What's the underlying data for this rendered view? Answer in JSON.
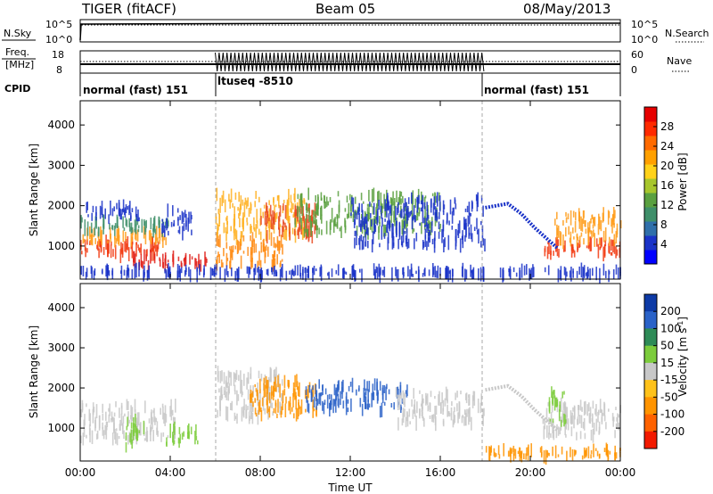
{
  "header": {
    "station": "TIGER (fitACF)",
    "beam": "Beam 05",
    "date": "08/May/2013"
  },
  "chart_data": [
    {
      "type": "line",
      "panel": "noise",
      "left_label": "N.Sky",
      "right_label": "N.Search",
      "left_ticks": [
        "10^5",
        "10^0"
      ],
      "right_ticks": [
        "10^5",
        "10^0"
      ]
    },
    {
      "type": "line",
      "panel": "frequency",
      "left_label_line1": "Freq.",
      "left_label_line2": "[MHz]",
      "right_label": "Nave",
      "left_ticks": [
        18,
        8
      ],
      "right_ticks": [
        60,
        0
      ],
      "nave_burst": {
        "start_hour": 6.0,
        "end_hour": 18.0
      }
    },
    {
      "type": "table",
      "panel": "cpid",
      "label": "CPID",
      "segments": [
        {
          "start_hour": 0,
          "end_hour": 6.0,
          "text": "normal (fast) 151"
        },
        {
          "start_hour": 6.0,
          "end_hour": 18.0,
          "text": "ltuseq -8510"
        },
        {
          "start_hour": 18.0,
          "end_hour": 24.0,
          "text": "normal (fast) 151"
        }
      ]
    },
    {
      "type": "heatmap",
      "panel": "power",
      "ylabel": "Slant Range [km]",
      "ylim": [
        180,
        4600
      ],
      "yticks": [
        1000,
        2000,
        3000,
        4000
      ],
      "xlim": [
        0,
        24
      ],
      "colorbar": {
        "label": "Power [dB]",
        "ticks": [
          4,
          8,
          12,
          16,
          20,
          24,
          28
        ],
        "range": [
          0,
          32
        ],
        "colors": [
          "#0000ff",
          "#1a33c8",
          "#2f6faa",
          "#3f8f6a",
          "#5aa040",
          "#a7c62c",
          "#ffd21a",
          "#ffa000",
          "#ff6a00",
          "#ff2a00",
          "#e60000"
        ]
      },
      "echo_regions": [
        {
          "x0": 0.0,
          "x1": 3.6,
          "y0": 750,
          "y1": 1100,
          "color": "#f23a10"
        },
        {
          "x0": 0.0,
          "x1": 3.8,
          "y0": 1100,
          "y1": 1350,
          "color": "#ff9c1a"
        },
        {
          "x0": 0.0,
          "x1": 4.0,
          "y0": 1350,
          "y1": 1650,
          "color": "#3f8f6a"
        },
        {
          "x0": 0.2,
          "x1": 2.6,
          "y0": 1650,
          "y1": 2000,
          "color": "#1a33c8"
        },
        {
          "x0": 2.3,
          "x1": 5.6,
          "y0": 500,
          "y1": 750,
          "color": "#e0201a"
        },
        {
          "x0": 3.6,
          "x1": 5.0,
          "y0": 1300,
          "y1": 1900,
          "color": "#1a33c8"
        },
        {
          "x0": 6.0,
          "x1": 9.0,
          "y0": 500,
          "y1": 1200,
          "color": "#ff8a10"
        },
        {
          "x0": 6.0,
          "x1": 10.0,
          "y0": 1200,
          "y1": 2300,
          "color": "#ffb020"
        },
        {
          "x0": 8.0,
          "x1": 10.5,
          "y0": 1200,
          "y1": 2000,
          "color": "#e94a20"
        },
        {
          "x0": 9.5,
          "x1": 16.0,
          "y0": 1300,
          "y1": 2300,
          "color": "#5aa040"
        },
        {
          "x0": 12.0,
          "x1": 18.0,
          "y0": 1000,
          "y1": 2200,
          "color": "#1a33c8"
        },
        {
          "x0": 20.5,
          "x1": 24.0,
          "y0": 800,
          "y1": 1100,
          "color": "#f23a10"
        },
        {
          "x0": 21.0,
          "x1": 24.0,
          "y0": 1100,
          "y1": 1800,
          "color": "#ff9c1a"
        },
        {
          "x0": 0.0,
          "x1": 24.0,
          "y0": 260,
          "y1": 420,
          "color": "#1a33c8"
        }
      ],
      "arc_tracks": [
        {
          "points": [
            [
              18.0,
              1950
            ],
            [
              19.0,
              2050
            ],
            [
              19.6,
              1800
            ],
            [
              20.2,
              1450
            ],
            [
              20.8,
              1150
            ],
            [
              21.2,
              950
            ]
          ],
          "color": "#1a33c8"
        }
      ]
    },
    {
      "type": "heatmap",
      "panel": "velocity",
      "ylabel": "Slant Range [km]",
      "xlabel": "Time UT",
      "ylim": [
        180,
        4600
      ],
      "yticks": [
        1000,
        2000,
        3000,
        4000
      ],
      "xlim": [
        0,
        24
      ],
      "xticks": [
        "00:00",
        "04:00",
        "08:00",
        "12:00",
        "16:00",
        "20:00",
        "00:00"
      ],
      "colorbar": {
        "label_main": "Velocity [m s",
        "label_sup": "-1",
        "label_end": "]",
        "ticks": [
          "200",
          "100",
          "50",
          "15",
          "-15",
          "-50",
          "-100",
          "-200"
        ],
        "colors": [
          "#0d3aa6",
          "#2a62c8",
          "#2e8b57",
          "#7ccc3c",
          "#c8c8c8",
          "#ffc21a",
          "#ff9400",
          "#ff6200",
          "#f21a00"
        ]
      },
      "echo_regions": [
        {
          "x0": 0.0,
          "x1": 4.2,
          "y0": 700,
          "y1": 1600,
          "color": "#c8c8c8"
        },
        {
          "x0": 2.0,
          "x1": 2.8,
          "y0": 500,
          "y1": 1200,
          "color": "#7ccc3c"
        },
        {
          "x0": 3.8,
          "x1": 5.2,
          "y0": 600,
          "y1": 1000,
          "color": "#7ccc3c"
        },
        {
          "x0": 6.0,
          "x1": 9.0,
          "y0": 1200,
          "y1": 2400,
          "color": "#c8c8c8"
        },
        {
          "x0": 7.5,
          "x1": 10.5,
          "y0": 1300,
          "y1": 2200,
          "color": "#ff9400"
        },
        {
          "x0": 10.0,
          "x1": 14.5,
          "y0": 1400,
          "y1": 2100,
          "color": "#2a62c8"
        },
        {
          "x0": 14.0,
          "x1": 18.0,
          "y0": 1100,
          "y1": 1900,
          "color": "#c8c8c8"
        },
        {
          "x0": 20.5,
          "x1": 24.0,
          "y0": 800,
          "y1": 1600,
          "color": "#c8c8c8"
        },
        {
          "x0": 20.8,
          "x1": 21.6,
          "y0": 1100,
          "y1": 1900,
          "color": "#7ccc3c"
        },
        {
          "x0": 18.0,
          "x1": 24.0,
          "y0": 260,
          "y1": 480,
          "color": "#ff9400"
        }
      ],
      "arc_tracks": [
        {
          "points": [
            [
              18.0,
              1950
            ],
            [
              19.0,
              2050
            ],
            [
              19.6,
              1800
            ],
            [
              20.2,
              1450
            ],
            [
              20.8,
              1150
            ],
            [
              21.2,
              950
            ]
          ],
          "color": "#c8c8c8"
        }
      ]
    }
  ]
}
